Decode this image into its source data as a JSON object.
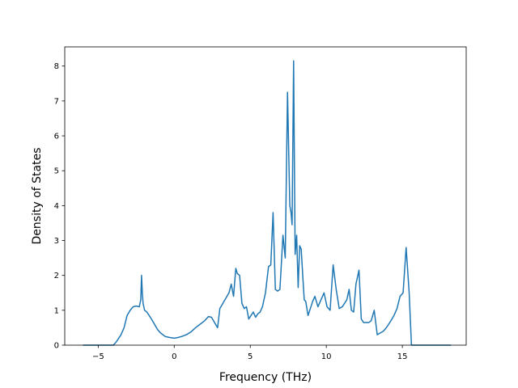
{
  "chart_data": {
    "type": "line",
    "title": "",
    "xlabel": "Frequency (THz)",
    "ylabel": "Density of States",
    "xlim": [
      -7.2,
      19.2
    ],
    "ylim": [
      0,
      8.55
    ],
    "xticks": [
      -5,
      0,
      5,
      10,
      15
    ],
    "yticks": [
      0,
      1,
      2,
      3,
      4,
      5,
      6,
      7,
      8
    ],
    "grid": false,
    "legend": "none",
    "line_color": "#1f77b4",
    "series": [
      {
        "x": [
          -6.0,
          -4.0,
          -3.8,
          -3.5,
          -3.3,
          -3.1,
          -2.9,
          -2.7,
          -2.5,
          -2.3,
          -2.2,
          -2.15,
          -2.1,
          -2.05,
          -1.95,
          -1.8,
          -1.65,
          -1.5,
          -1.3,
          -1.1,
          -0.9,
          -0.6,
          -0.3,
          0.0,
          0.25,
          0.5,
          0.8,
          1.1,
          1.4,
          1.7,
          2.0,
          2.25,
          2.45,
          2.65,
          2.85,
          3.0,
          3.2,
          3.4,
          3.6,
          3.75,
          3.9,
          4.05,
          4.15,
          4.3,
          4.45,
          4.6,
          4.75,
          4.9,
          5.05,
          5.2,
          5.35,
          5.5,
          5.65,
          5.8,
          6.0,
          6.2,
          6.35,
          6.5,
          6.65,
          6.8,
          6.95,
          7.15,
          7.3,
          7.45,
          7.6,
          7.68,
          7.75,
          7.85,
          7.95,
          8.05,
          8.15,
          8.25,
          8.35,
          8.45,
          8.55,
          8.65,
          8.8,
          8.95,
          9.1,
          9.25,
          9.45,
          9.65,
          9.85,
          10.05,
          10.25,
          10.45,
          10.65,
          10.85,
          11.05,
          11.2,
          11.35,
          11.5,
          11.65,
          11.8,
          11.95,
          12.15,
          12.3,
          12.45,
          12.6,
          12.8,
          12.95,
          13.15,
          13.35,
          13.55,
          13.75,
          13.95,
          14.1,
          14.25,
          14.45,
          14.65,
          14.85,
          15.05,
          15.25,
          15.45,
          15.6,
          15.75,
          15.9,
          16.0,
          16.1,
          16.2,
          16.3,
          18.2
        ],
        "y": [
          0.0,
          0.0,
          0.1,
          0.3,
          0.5,
          0.85,
          1.0,
          1.1,
          1.12,
          1.1,
          1.3,
          2.0,
          1.5,
          1.2,
          1.0,
          0.95,
          0.85,
          0.75,
          0.6,
          0.45,
          0.35,
          0.25,
          0.22,
          0.2,
          0.22,
          0.25,
          0.3,
          0.38,
          0.5,
          0.6,
          0.7,
          0.82,
          0.8,
          0.65,
          0.5,
          1.05,
          1.2,
          1.35,
          1.5,
          1.75,
          1.4,
          2.2,
          2.05,
          2.0,
          1.2,
          1.05,
          1.1,
          0.75,
          0.85,
          0.95,
          0.8,
          0.9,
          0.95,
          1.1,
          1.5,
          2.25,
          2.3,
          3.8,
          1.6,
          1.55,
          1.6,
          3.15,
          2.5,
          7.25,
          4.0,
          3.8,
          3.45,
          8.15,
          2.6,
          3.15,
          1.65,
          2.85,
          2.75,
          2.0,
          1.3,
          1.25,
          0.85,
          1.05,
          1.25,
          1.4,
          1.1,
          1.3,
          1.5,
          1.1,
          1.0,
          2.3,
          1.6,
          1.05,
          1.1,
          1.2,
          1.3,
          1.6,
          1.0,
          0.95,
          1.75,
          2.15,
          0.75,
          0.65,
          0.65,
          0.65,
          0.7,
          1.0,
          0.3,
          0.35,
          0.4,
          0.5,
          0.6,
          0.7,
          0.85,
          1.05,
          1.4,
          1.5,
          2.8,
          1.5,
          0.0,
          0.0,
          0.0,
          0.0,
          0.0,
          0.0,
          0.0,
          0.0
        ]
      }
    ]
  }
}
